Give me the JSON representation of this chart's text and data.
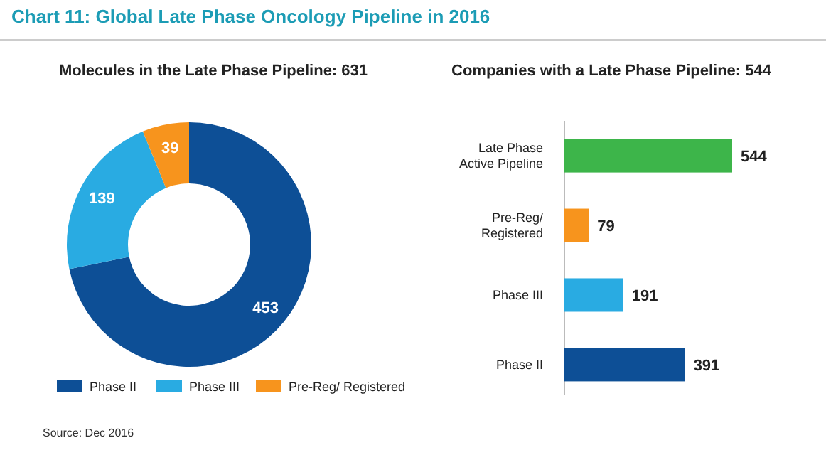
{
  "chart_data": [
    {
      "type": "donut",
      "title": "Chart 11: Global Late Phase Oncology Pipeline in 2016",
      "subtitle": "Molecules in the Late Phase Pipeline: 631",
      "categories": [
        "Phase II",
        "Phase III",
        "Pre-Reg/ Registered"
      ],
      "values": [
        453,
        139,
        39
      ],
      "colors": [
        "#0d4f96",
        "#29abe2",
        "#f7941d"
      ],
      "data_labels": true,
      "legend": "bottom",
      "annotations": [
        "Source: Dec 2016"
      ]
    },
    {
      "type": "bar",
      "orientation": "horizontal",
      "subtitle": "Companies with a Late Phase Pipeline: 544",
      "categories": [
        "Late Phase\nActive Pipeline",
        "Pre-Reg/\nRegistered",
        "Phase III",
        "Phase II"
      ],
      "values": [
        544,
        79,
        191,
        391
      ],
      "colors": [
        "#3db54a",
        "#f7941d",
        "#29abe2",
        "#0d4f96"
      ],
      "data_labels": true
    }
  ]
}
